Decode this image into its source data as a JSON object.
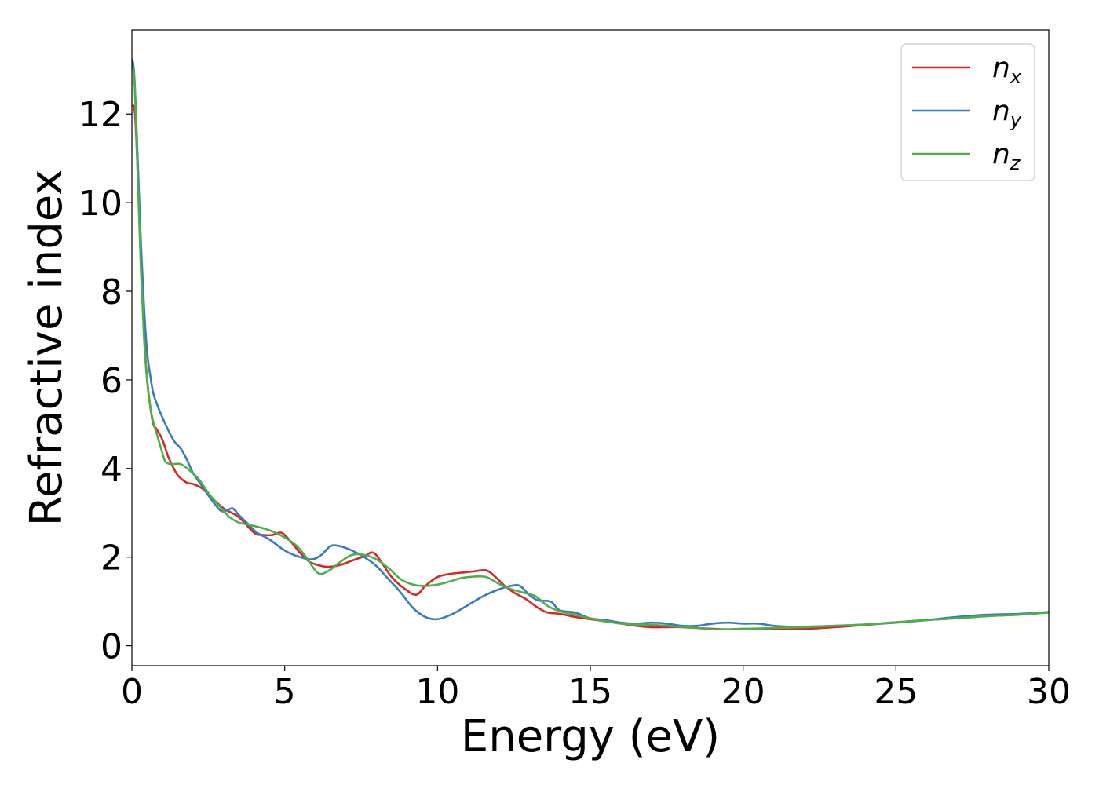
{
  "chart_data": {
    "type": "line",
    "xlabel": "Energy (eV)",
    "ylabel": "Refractive index",
    "xlim": [
      0,
      30
    ],
    "ylim": [
      -0.45,
      13.9
    ],
    "xticks": [
      0,
      5,
      10,
      15,
      20,
      25,
      30
    ],
    "yticks": [
      0,
      2,
      4,
      6,
      8,
      10,
      12
    ],
    "grid": false,
    "legend_position": "top-right",
    "series": [
      {
        "name": "n",
        "subscript": "x",
        "color": "#d62728",
        "x": [
          0,
          0.1,
          0.2,
          0.3,
          0.4,
          0.5,
          0.6,
          0.7,
          0.8,
          1.0,
          1.2,
          1.5,
          1.8,
          2.0,
          2.3,
          2.6,
          3.0,
          3.5,
          4.0,
          4.3,
          4.6,
          4.9,
          5.2,
          5.5,
          5.8,
          6.1,
          6.4,
          6.8,
          7.2,
          7.6,
          7.9,
          8.2,
          8.5,
          8.9,
          9.3,
          9.6,
          10.0,
          10.4,
          10.8,
          11.2,
          11.6,
          11.9,
          12.2,
          12.5,
          12.9,
          13.3,
          13.6,
          14.0,
          14.5,
          15.0,
          15.5,
          16.0,
          16.5,
          17.0,
          17.5,
          18.0,
          18.5,
          19.0,
          19.5,
          20.0,
          21.0,
          22.0,
          23.0,
          24.0,
          25.0,
          26.0,
          27.0,
          28.0,
          29.0,
          30.0
        ],
        "values": [
          12.2,
          12.0,
          10.5,
          8.5,
          7.0,
          6.0,
          5.4,
          5.0,
          4.9,
          4.65,
          4.25,
          3.85,
          3.68,
          3.65,
          3.55,
          3.35,
          3.1,
          2.9,
          2.55,
          2.5,
          2.5,
          2.55,
          2.35,
          2.1,
          1.9,
          1.82,
          1.78,
          1.82,
          1.92,
          2.02,
          2.1,
          1.85,
          1.55,
          1.3,
          1.15,
          1.35,
          1.55,
          1.62,
          1.65,
          1.68,
          1.7,
          1.55,
          1.35,
          1.2,
          1.05,
          0.85,
          0.75,
          0.72,
          0.65,
          0.6,
          0.55,
          0.5,
          0.45,
          0.42,
          0.42,
          0.42,
          0.4,
          0.38,
          0.37,
          0.38,
          0.38,
          0.38,
          0.42,
          0.47,
          0.53,
          0.58,
          0.62,
          0.67,
          0.7,
          0.76
        ]
      },
      {
        "name": "n",
        "subscript": "y",
        "color": "#377eb8",
        "x": [
          0,
          0.05,
          0.1,
          0.2,
          0.3,
          0.4,
          0.5,
          0.6,
          0.7,
          0.85,
          1.0,
          1.2,
          1.4,
          1.6,
          1.8,
          2.0,
          2.3,
          2.6,
          2.9,
          3.1,
          3.3,
          3.5,
          3.8,
          4.1,
          4.5,
          5.0,
          5.5,
          5.9,
          6.2,
          6.5,
          6.8,
          7.2,
          7.6,
          8.0,
          8.4,
          8.8,
          9.2,
          9.6,
          10.0,
          10.5,
          11.0,
          11.5,
          12.0,
          12.4,
          12.7,
          13.0,
          13.3,
          13.7,
          14.0,
          14.5,
          15.0,
          15.5,
          16.0,
          16.5,
          17.0,
          17.5,
          18.0,
          18.5,
          19.0,
          19.5,
          20.0,
          20.5,
          21.0,
          21.5,
          22.0,
          23.0,
          24.0,
          25.0,
          26.0,
          27.0,
          28.0,
          29.0,
          30.0
        ],
        "values": [
          13.25,
          13.1,
          12.6,
          10.8,
          9.0,
          7.6,
          6.6,
          6.1,
          5.7,
          5.4,
          5.15,
          4.85,
          4.6,
          4.45,
          4.2,
          3.9,
          3.6,
          3.3,
          3.05,
          3.05,
          3.1,
          2.95,
          2.75,
          2.55,
          2.4,
          2.15,
          2.0,
          1.95,
          2.05,
          2.25,
          2.25,
          2.15,
          2.0,
          1.8,
          1.5,
          1.2,
          0.85,
          0.65,
          0.6,
          0.72,
          0.92,
          1.12,
          1.27,
          1.35,
          1.35,
          1.15,
          1.02,
          1.0,
          0.8,
          0.75,
          0.62,
          0.58,
          0.52,
          0.5,
          0.52,
          0.5,
          0.45,
          0.45,
          0.5,
          0.52,
          0.5,
          0.5,
          0.45,
          0.43,
          0.43,
          0.45,
          0.48,
          0.52,
          0.58,
          0.65,
          0.7,
          0.72,
          0.76
        ]
      },
      {
        "name": "n",
        "subscript": "z",
        "color": "#4daf4a",
        "x": [
          0,
          0.05,
          0.1,
          0.2,
          0.3,
          0.4,
          0.5,
          0.6,
          0.7,
          0.85,
          1.0,
          1.1,
          1.3,
          1.6,
          1.9,
          2.2,
          2.5,
          2.8,
          3.0,
          3.2,
          3.5,
          3.9,
          4.3,
          4.7,
          5.1,
          5.4,
          5.7,
          6.0,
          6.2,
          6.5,
          6.8,
          7.2,
          7.6,
          8.0,
          8.4,
          8.8,
          9.2,
          9.6,
          10.0,
          10.4,
          10.8,
          11.2,
          11.6,
          12.0,
          12.4,
          12.8,
          13.2,
          13.6,
          14.0,
          14.5,
          15.0,
          15.5,
          16.0,
          16.5,
          17.0,
          17.5,
          18.0,
          18.5,
          19.0,
          19.5,
          20.0,
          21.0,
          22.0,
          23.0,
          24.0,
          25.0,
          26.0,
          27.0,
          28.0,
          29.0,
          30.0
        ],
        "values": [
          13.1,
          13.0,
          12.5,
          10.4,
          8.4,
          6.9,
          5.95,
          5.4,
          5.05,
          4.7,
          4.35,
          4.15,
          4.1,
          4.1,
          3.95,
          3.75,
          3.45,
          3.2,
          3.05,
          2.9,
          2.78,
          2.72,
          2.65,
          2.55,
          2.4,
          2.25,
          2.0,
          1.7,
          1.62,
          1.72,
          1.88,
          2.05,
          2.05,
          1.95,
          1.75,
          1.5,
          1.38,
          1.35,
          1.38,
          1.45,
          1.53,
          1.56,
          1.55,
          1.4,
          1.28,
          1.2,
          1.12,
          0.9,
          0.78,
          0.7,
          0.62,
          0.55,
          0.5,
          0.48,
          0.47,
          0.45,
          0.42,
          0.4,
          0.37,
          0.37,
          0.38,
          0.4,
          0.42,
          0.45,
          0.48,
          0.53,
          0.58,
          0.62,
          0.67,
          0.7,
          0.75
        ]
      }
    ]
  }
}
